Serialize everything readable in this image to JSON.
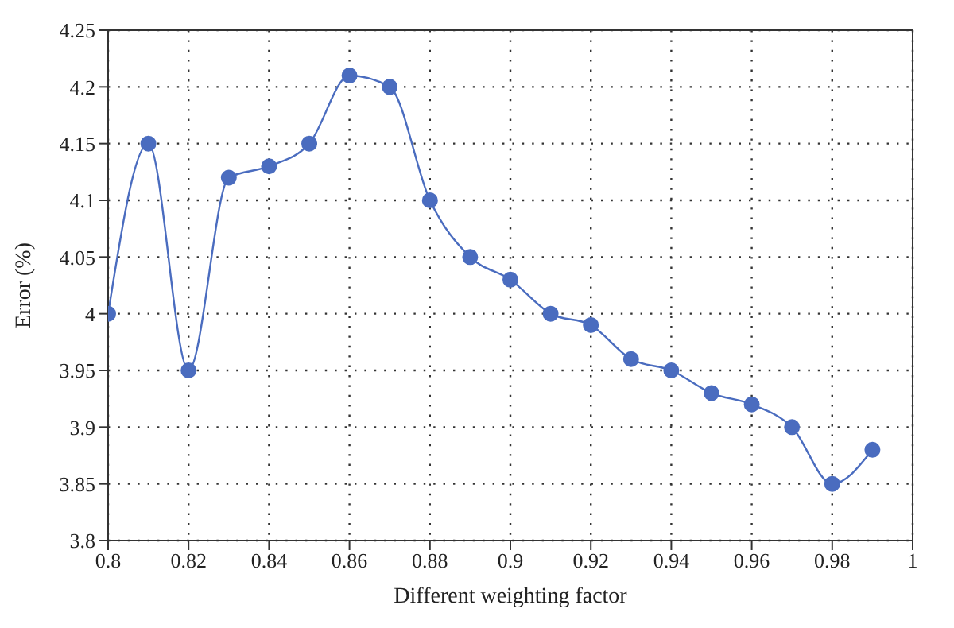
{
  "chart_data": {
    "type": "line",
    "xlabel": "Different weighting factor",
    "ylabel": "Error (%)",
    "x": [
      0.8,
      0.81,
      0.82,
      0.83,
      0.84,
      0.85,
      0.86,
      0.87,
      0.88,
      0.89,
      0.9,
      0.91,
      0.92,
      0.93,
      0.94,
      0.95,
      0.96,
      0.97,
      0.98,
      0.99
    ],
    "series": [
      {
        "color": "#4a6cbf",
        "values": [
          4.0,
          4.15,
          3.95,
          4.12,
          4.13,
          4.15,
          4.21,
          4.2,
          4.1,
          4.05,
          4.03,
          4.0,
          3.99,
          3.96,
          3.95,
          3.93,
          3.92,
          3.9,
          3.85,
          3.88
        ]
      }
    ],
    "xlim": [
      0.8,
      1
    ],
    "xticks": [
      0.8,
      0.82,
      0.84,
      0.86,
      0.88,
      0.9,
      0.92,
      0.94,
      0.96,
      0.98,
      1
    ],
    "ylim": [
      3.8,
      4.25
    ],
    "yticks": [
      3.8,
      3.85,
      3.9,
      3.95,
      4,
      4.05,
      4.1,
      4.15,
      4.2,
      4.25
    ],
    "grid": true,
    "marker": "circle",
    "line_style": "solid"
  }
}
